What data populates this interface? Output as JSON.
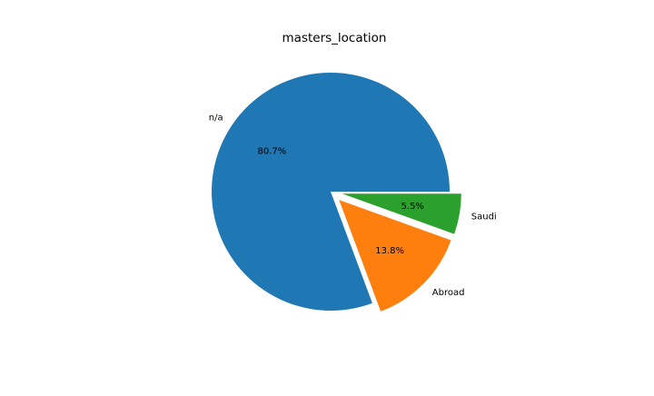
{
  "chart_data": {
    "type": "pie",
    "title": "masters_location",
    "categories": [
      "n/a",
      "Abroad",
      "Saudi"
    ],
    "values": [
      80.7,
      13.8,
      5.5
    ],
    "percent_labels": [
      "80.7%",
      "13.8%",
      "5.5%"
    ],
    "colors": [
      "#1f77b4",
      "#ff7f0e",
      "#2ca02c"
    ],
    "exploded": [
      false,
      true,
      true
    ],
    "start_angle_deg": 0,
    "direction": "counterclockwise",
    "legend": "none"
  }
}
